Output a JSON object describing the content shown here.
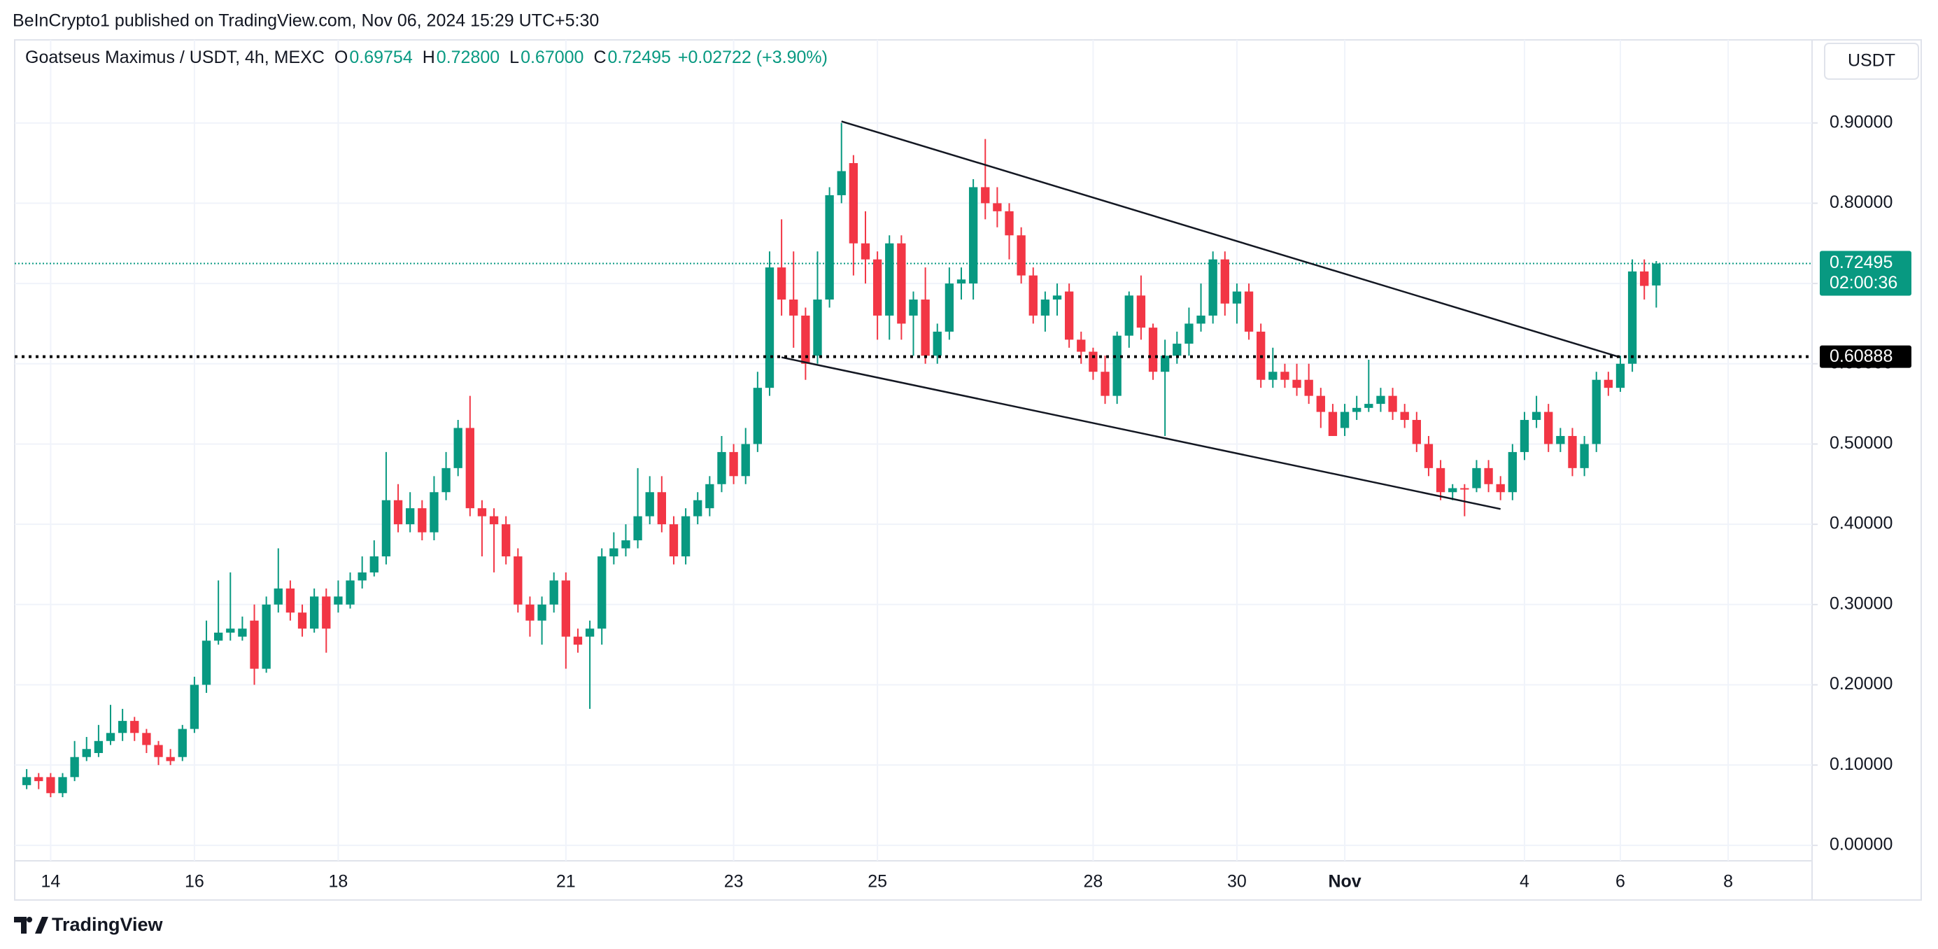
{
  "header": "BeInCrypto1 published on TradingView.com, Nov 06, 2024 15:29 UTC+5:30",
  "currency_button": "USDT",
  "footer_brand": "TradingView",
  "chart_data": {
    "type": "candlestick",
    "title": "Goatseus Maximus / USDT, 4h, MEXC",
    "ohlc_legend": {
      "labels": [
        "O",
        "H",
        "L",
        "C"
      ],
      "values": [
        0.69754,
        0.728,
        0.67,
        0.72495
      ],
      "value_labels": [
        "0.69754",
        "0.72800",
        "0.67000",
        "0.72495"
      ],
      "change": "+0.02722 (+3.90%)"
    },
    "up_color": "#089981",
    "down_color": "#f23645",
    "open": [
      0.075,
      0.085,
      0.085,
      0.065,
      0.085,
      0.11,
      0.115,
      0.13,
      0.14,
      0.155,
      0.14,
      0.125,
      0.11,
      0.11,
      0.145,
      0.2,
      0.255,
      0.265,
      0.26,
      0.28,
      0.22,
      0.3,
      0.32,
      0.29,
      0.27,
      0.31,
      0.3,
      0.3,
      0.33,
      0.34,
      0.36,
      0.43,
      0.4,
      0.42,
      0.39,
      0.44,
      0.47,
      0.52,
      0.42,
      0.41,
      0.4,
      0.36,
      0.3,
      0.28,
      0.3,
      0.33,
      0.26,
      0.26,
      0.27,
      0.36,
      0.37,
      0.38,
      0.41,
      0.44,
      0.4,
      0.36,
      0.41,
      0.42,
      0.45,
      0.49,
      0.46,
      0.5,
      0.57,
      0.72,
      0.68,
      0.66,
      0.61,
      0.68,
      0.81,
      0.85,
      0.75,
      0.73,
      0.66,
      0.75,
      0.66,
      0.68,
      0.61,
      0.64,
      0.7,
      0.7,
      0.82,
      0.8,
      0.79,
      0.76,
      0.71,
      0.66,
      0.68,
      0.69,
      0.63,
      0.615,
      0.59,
      0.56,
      0.635,
      0.685,
      0.645,
      0.59,
      0.61,
      0.625,
      0.65,
      0.66,
      0.73,
      0.675,
      0.69,
      0.64,
      0.58,
      0.59,
      0.58,
      0.58,
      0.56,
      0.54,
      0.52,
      0.54,
      0.545,
      0.55,
      0.56,
      0.54,
      0.53,
      0.5,
      0.47,
      0.44,
      0.445,
      0.445,
      0.47,
      0.45,
      0.44,
      0.49,
      0.53,
      0.54,
      0.5,
      0.51,
      0.47,
      0.5,
      0.58,
      0.57,
      0.6,
      0.715,
      0.69754
    ],
    "high": [
      0.095,
      0.09,
      0.09,
      0.09,
      0.13,
      0.135,
      0.15,
      0.175,
      0.17,
      0.16,
      0.145,
      0.13,
      0.12,
      0.15,
      0.21,
      0.28,
      0.33,
      0.34,
      0.285,
      0.3,
      0.31,
      0.37,
      0.33,
      0.3,
      0.32,
      0.32,
      0.33,
      0.34,
      0.36,
      0.38,
      0.49,
      0.45,
      0.44,
      0.43,
      0.46,
      0.49,
      0.53,
      0.56,
      0.43,
      0.42,
      0.41,
      0.37,
      0.31,
      0.31,
      0.34,
      0.34,
      0.27,
      0.28,
      0.37,
      0.39,
      0.4,
      0.47,
      0.46,
      0.46,
      0.41,
      0.42,
      0.44,
      0.46,
      0.51,
      0.5,
      0.52,
      0.59,
      0.74,
      0.78,
      0.74,
      0.67,
      0.74,
      0.82,
      0.9,
      0.86,
      0.79,
      0.74,
      0.76,
      0.76,
      0.69,
      0.72,
      0.65,
      0.72,
      0.72,
      0.83,
      0.88,
      0.82,
      0.8,
      0.77,
      0.72,
      0.69,
      0.7,
      0.7,
      0.64,
      0.62,
      0.61,
      0.64,
      0.69,
      0.71,
      0.65,
      0.63,
      0.64,
      0.67,
      0.7,
      0.74,
      0.74,
      0.7,
      0.7,
      0.65,
      0.62,
      0.6,
      0.6,
      0.6,
      0.57,
      0.55,
      0.55,
      0.56,
      0.605,
      0.57,
      0.57,
      0.55,
      0.54,
      0.51,
      0.48,
      0.45,
      0.45,
      0.48,
      0.48,
      0.46,
      0.5,
      0.54,
      0.56,
      0.55,
      0.52,
      0.52,
      0.51,
      0.59,
      0.59,
      0.61,
      0.73,
      0.73,
      0.728
    ],
    "low": [
      0.07,
      0.07,
      0.06,
      0.06,
      0.08,
      0.105,
      0.11,
      0.125,
      0.13,
      0.13,
      0.115,
      0.1,
      0.1,
      0.105,
      0.14,
      0.19,
      0.25,
      0.255,
      0.255,
      0.2,
      0.215,
      0.29,
      0.28,
      0.26,
      0.265,
      0.24,
      0.29,
      0.295,
      0.32,
      0.335,
      0.35,
      0.39,
      0.39,
      0.38,
      0.38,
      0.43,
      0.46,
      0.41,
      0.36,
      0.34,
      0.35,
      0.29,
      0.26,
      0.25,
      0.29,
      0.22,
      0.24,
      0.17,
      0.25,
      0.35,
      0.36,
      0.37,
      0.4,
      0.39,
      0.35,
      0.35,
      0.4,
      0.41,
      0.44,
      0.45,
      0.45,
      0.49,
      0.56,
      0.66,
      0.62,
      0.58,
      0.6,
      0.67,
      0.8,
      0.71,
      0.7,
      0.63,
      0.63,
      0.63,
      0.61,
      0.6,
      0.6,
      0.63,
      0.68,
      0.68,
      0.78,
      0.77,
      0.73,
      0.7,
      0.65,
      0.64,
      0.66,
      0.62,
      0.6,
      0.58,
      0.55,
      0.55,
      0.62,
      0.63,
      0.58,
      0.51,
      0.6,
      0.61,
      0.64,
      0.65,
      0.66,
      0.65,
      0.63,
      0.57,
      0.57,
      0.57,
      0.56,
      0.55,
      0.52,
      0.51,
      0.51,
      0.53,
      0.54,
      0.54,
      0.53,
      0.52,
      0.49,
      0.46,
      0.43,
      0.43,
      0.41,
      0.44,
      0.44,
      0.43,
      0.43,
      0.48,
      0.52,
      0.49,
      0.49,
      0.46,
      0.46,
      0.49,
      0.56,
      0.565,
      0.59,
      0.68,
      0.67
    ],
    "close": [
      0.085,
      0.08,
      0.065,
      0.085,
      0.11,
      0.12,
      0.13,
      0.14,
      0.155,
      0.14,
      0.125,
      0.11,
      0.105,
      0.145,
      0.2,
      0.255,
      0.265,
      0.27,
      0.27,
      0.22,
      0.3,
      0.32,
      0.29,
      0.27,
      0.31,
      0.27,
      0.31,
      0.33,
      0.34,
      0.36,
      0.43,
      0.4,
      0.42,
      0.39,
      0.44,
      0.47,
      0.52,
      0.42,
      0.41,
      0.4,
      0.36,
      0.3,
      0.28,
      0.3,
      0.33,
      0.26,
      0.25,
      0.27,
      0.36,
      0.37,
      0.38,
      0.41,
      0.44,
      0.4,
      0.36,
      0.41,
      0.43,
      0.45,
      0.49,
      0.46,
      0.5,
      0.57,
      0.72,
      0.68,
      0.66,
      0.6,
      0.68,
      0.81,
      0.84,
      0.75,
      0.73,
      0.66,
      0.75,
      0.65,
      0.68,
      0.61,
      0.64,
      0.7,
      0.705,
      0.82,
      0.8,
      0.79,
      0.76,
      0.71,
      0.66,
      0.68,
      0.685,
      0.63,
      0.615,
      0.59,
      0.56,
      0.635,
      0.685,
      0.645,
      0.59,
      0.61,
      0.625,
      0.65,
      0.66,
      0.73,
      0.675,
      0.69,
      0.64,
      0.58,
      0.59,
      0.58,
      0.57,
      0.56,
      0.54,
      0.51,
      0.54,
      0.545,
      0.55,
      0.56,
      0.54,
      0.53,
      0.5,
      0.47,
      0.44,
      0.445,
      0.444,
      0.47,
      0.45,
      0.44,
      0.49,
      0.53,
      0.54,
      0.5,
      0.51,
      0.47,
      0.5,
      0.58,
      0.57,
      0.6,
      0.715,
      0.697,
      0.72495
    ],
    "xlim": [
      -1,
      149
    ],
    "xticks": [
      {
        "value": 2,
        "label": "14"
      },
      {
        "value": 14,
        "label": "16"
      },
      {
        "value": 26,
        "label": "18"
      },
      {
        "value": 45,
        "label": "21"
      },
      {
        "value": 59,
        "label": "23"
      },
      {
        "value": 71,
        "label": "25"
      },
      {
        "value": 89,
        "label": "28"
      },
      {
        "value": 101,
        "label": "30"
      },
      {
        "value": 110,
        "label": "Nov"
      },
      {
        "value": 125,
        "label": "4"
      },
      {
        "value": 133,
        "label": "6"
      },
      {
        "value": 142,
        "label": "8"
      }
    ],
    "ylim": [
      -0.0193,
      1.0035
    ],
    "yticks": [
      {
        "value": 0,
        "label": "0.00000"
      },
      {
        "value": 0.1,
        "label": "0.10000"
      },
      {
        "value": 0.2,
        "label": "0.20000"
      },
      {
        "value": 0.3,
        "label": "0.30000"
      },
      {
        "value": 0.4,
        "label": "0.40000"
      },
      {
        "value": 0.5,
        "label": "0.50000"
      },
      {
        "value": 0.6,
        "label": "0.60000"
      },
      {
        "value": 0.7,
        "label": "0.70000"
      },
      {
        "value": 0.8,
        "label": "0.80000"
      },
      {
        "value": 0.9,
        "label": "0.90000"
      }
    ],
    "grid": true,
    "trendlines": [
      {
        "x": [
          68,
          133
        ],
        "y": [
          0.902,
          0.608
        ]
      },
      {
        "x": [
          63,
          123
        ],
        "y": [
          0.608,
          0.419
        ]
      }
    ],
    "horizontal_line": {
      "value": 0.60888,
      "label": "0.60888"
    },
    "last_price": {
      "value": 0.72495,
      "label": "0.72495",
      "countdown": "02:00:36"
    }
  }
}
